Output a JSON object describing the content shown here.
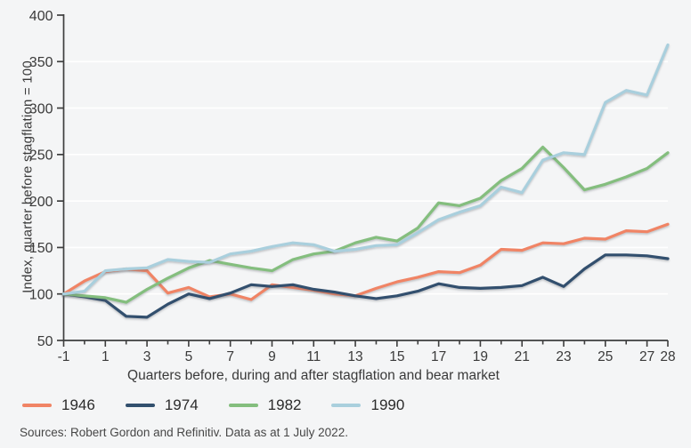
{
  "chart_data": {
    "type": "line",
    "title": "",
    "xlabel": "Quarters before, during and after stagflation and bear market",
    "ylabel": "Index, quarter before stagflation = 100",
    "source": "Sources: Robert Gordon and Refinitiv. Data as at 1 July 2022.",
    "x": [
      -1,
      0,
      1,
      2,
      3,
      4,
      5,
      6,
      7,
      8,
      9,
      10,
      11,
      12,
      13,
      14,
      15,
      16,
      17,
      18,
      19,
      20,
      21,
      22,
      23,
      24,
      25,
      26,
      27,
      28
    ],
    "x_tick_labels": [
      "-1",
      "1",
      "3",
      "5",
      "7",
      "9",
      "11",
      "13",
      "15",
      "17",
      "19",
      "21",
      "23",
      "25",
      "27",
      "28"
    ],
    "ylim": [
      50,
      400
    ],
    "yticks": [
      50,
      100,
      150,
      200,
      250,
      300,
      350,
      400
    ],
    "grid": "horizontal",
    "legend_position": "bottom-left",
    "series": [
      {
        "name": "1946",
        "color": "#F08465",
        "values": [
          100,
          114,
          124,
          127,
          125,
          101,
          107,
          97,
          100,
          94,
          110,
          107,
          104,
          100,
          98,
          106,
          113,
          118,
          124,
          123,
          131,
          148,
          147,
          155,
          154,
          160,
          159,
          168,
          167,
          175
        ]
      },
      {
        "name": "1974",
        "color": "#32506E",
        "values": [
          100,
          97,
          93,
          76,
          75,
          89,
          100,
          95,
          101,
          110,
          108,
          110,
          105,
          102,
          98,
          95,
          98,
          103,
          111,
          107,
          106,
          107,
          109,
          118,
          108,
          127,
          142,
          142,
          141,
          138
        ]
      },
      {
        "name": "1982",
        "color": "#84BE7E",
        "values": [
          100,
          98,
          96,
          91,
          105,
          117,
          128,
          136,
          132,
          128,
          125,
          137,
          143,
          146,
          155,
          161,
          157,
          171,
          198,
          195,
          203,
          222,
          235,
          258,
          236,
          212,
          218,
          226,
          235,
          252
        ]
      },
      {
        "name": "1990",
        "color": "#A9CFDD",
        "values": [
          100,
          103,
          125,
          127,
          128,
          137,
          135,
          134,
          143,
          146,
          151,
          155,
          153,
          146,
          148,
          152,
          153,
          166,
          180,
          188,
          195,
          215,
          209,
          244,
          252,
          250,
          306,
          319,
          314,
          368
        ]
      }
    ],
    "colors": {
      "background": "#F4F5F6",
      "gridline": "#FFFFFF",
      "axis": "#3E3E3E",
      "tick_text": "#3A3A3A"
    }
  }
}
